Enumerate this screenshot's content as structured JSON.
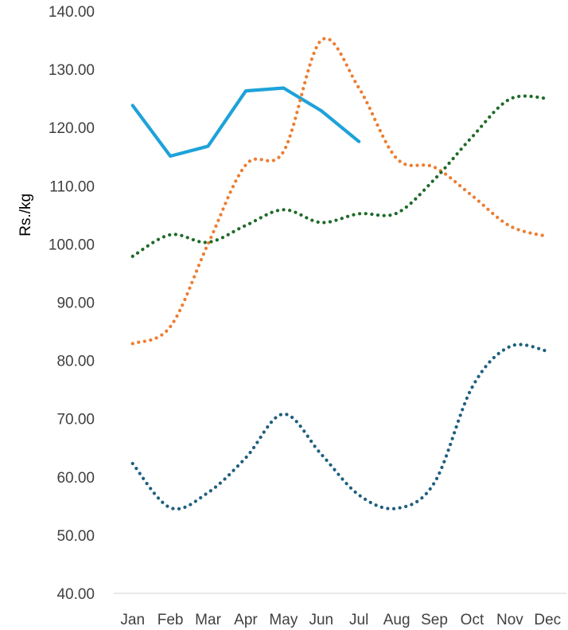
{
  "chart_data": {
    "type": "line",
    "title": "",
    "xlabel": "",
    "ylabel": "Rs./kg",
    "ylim": [
      40,
      140
    ],
    "y_ticks": [
      "40.00",
      "50.00",
      "60.00",
      "70.00",
      "80.00",
      "90.00",
      "100.00",
      "110.00",
      "120.00",
      "130.00",
      "140.00"
    ],
    "categories": [
      "Jan",
      "Feb",
      "Mar",
      "Apr",
      "May",
      "Jun",
      "Jul",
      "Aug",
      "Sep",
      "Oct",
      "Nov",
      "Dec"
    ],
    "grid": false,
    "legend": "none",
    "series": [
      {
        "values": [
          123.8,
          115.1,
          116.8,
          126.3,
          126.8,
          122.9,
          117.6,
          null,
          null,
          null,
          null,
          null
        ],
        "color": "#1ea2d9",
        "style": "solid"
      },
      {
        "values": [
          82.9,
          85.8,
          100.0,
          113.6,
          115.9,
          135.0,
          126.8,
          114.7,
          113.2,
          108.3,
          103.1,
          101.3
        ],
        "color": "#ed7d31",
        "style": "dotted"
      },
      {
        "values": [
          97.9,
          101.6,
          100.3,
          103.2,
          105.9,
          103.7,
          105.2,
          105.3,
          111.1,
          118.4,
          124.9,
          125.0
        ],
        "color": "#1f6a2a",
        "style": "dotted"
      },
      {
        "values": [
          62.3,
          54.7,
          57.3,
          63.3,
          70.8,
          63.9,
          56.9,
          54.6,
          59.0,
          75.4,
          82.4,
          81.6
        ],
        "color": "#1f5f7f",
        "style": "dotted"
      }
    ]
  }
}
